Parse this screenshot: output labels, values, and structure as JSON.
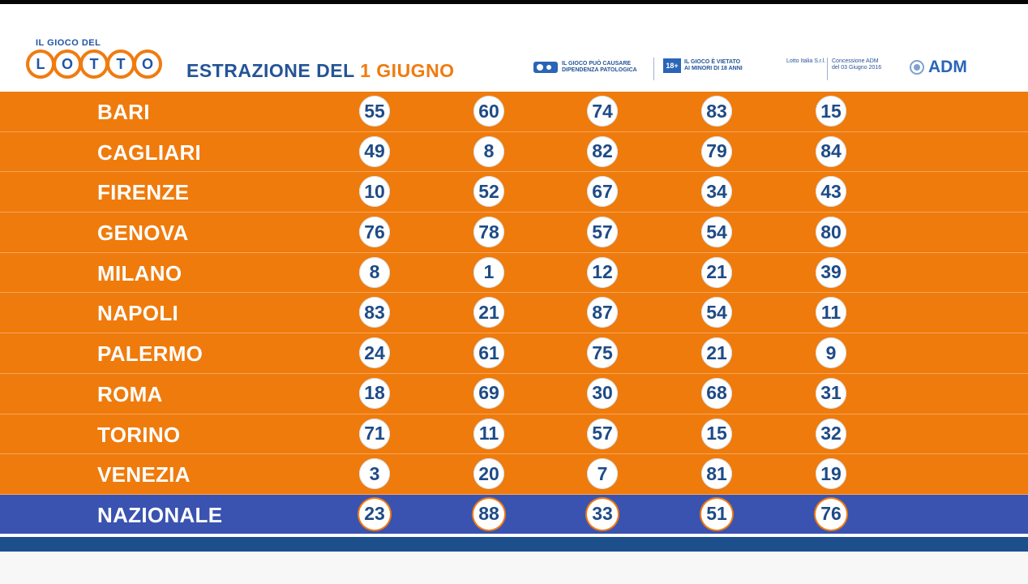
{
  "logo": {
    "top_text": "IL GIOCO DEL",
    "letters": [
      "L",
      "O",
      "T",
      "T",
      "O"
    ]
  },
  "header": {
    "title_prefix": "ESTRAZIONE DEL",
    "title_date": "1 GIUGNO"
  },
  "notices": {
    "gambling": [
      "IL GIOCO PUÒ CAUSARE",
      "DIPENDENZA PATOLOGICA"
    ],
    "age_badge": "18+",
    "minors": [
      "IL GIOCO È VIETATO",
      "AI MINORI DI 18 ANNI"
    ],
    "lotto_italia": "Lotto Italia S.r.l.",
    "concession": [
      "Concessione ADM",
      "del 03 Giugno 2016"
    ],
    "adm": "ADM"
  },
  "draws": [
    {
      "city": "BARI",
      "numbers": [
        "55",
        "60",
        "74",
        "83",
        "15"
      ]
    },
    {
      "city": "CAGLIARI",
      "numbers": [
        "49",
        "8",
        "82",
        "79",
        "84"
      ]
    },
    {
      "city": "FIRENZE",
      "numbers": [
        "10",
        "52",
        "67",
        "34",
        "43"
      ]
    },
    {
      "city": "GENOVA",
      "numbers": [
        "76",
        "78",
        "57",
        "54",
        "80"
      ]
    },
    {
      "city": "MILANO",
      "numbers": [
        "8",
        "1",
        "12",
        "21",
        "39"
      ]
    },
    {
      "city": "NAPOLI",
      "numbers": [
        "83",
        "21",
        "87",
        "54",
        "11"
      ]
    },
    {
      "city": "PALERMO",
      "numbers": [
        "24",
        "61",
        "75",
        "21",
        "9"
      ]
    },
    {
      "city": "ROMA",
      "numbers": [
        "18",
        "69",
        "30",
        "68",
        "31"
      ]
    },
    {
      "city": "TORINO",
      "numbers": [
        "71",
        "11",
        "57",
        "15",
        "32"
      ]
    },
    {
      "city": "VENEZIA",
      "numbers": [
        "3",
        "20",
        "7",
        "81",
        "19"
      ]
    }
  ],
  "nazionale": {
    "city": "NAZIONALE",
    "numbers": [
      "23",
      "88",
      "33",
      "51",
      "76"
    ]
  },
  "colors": {
    "orange": "#ef7b0c",
    "blue": "#3a53b0",
    "navy": "#1c4f8c"
  }
}
